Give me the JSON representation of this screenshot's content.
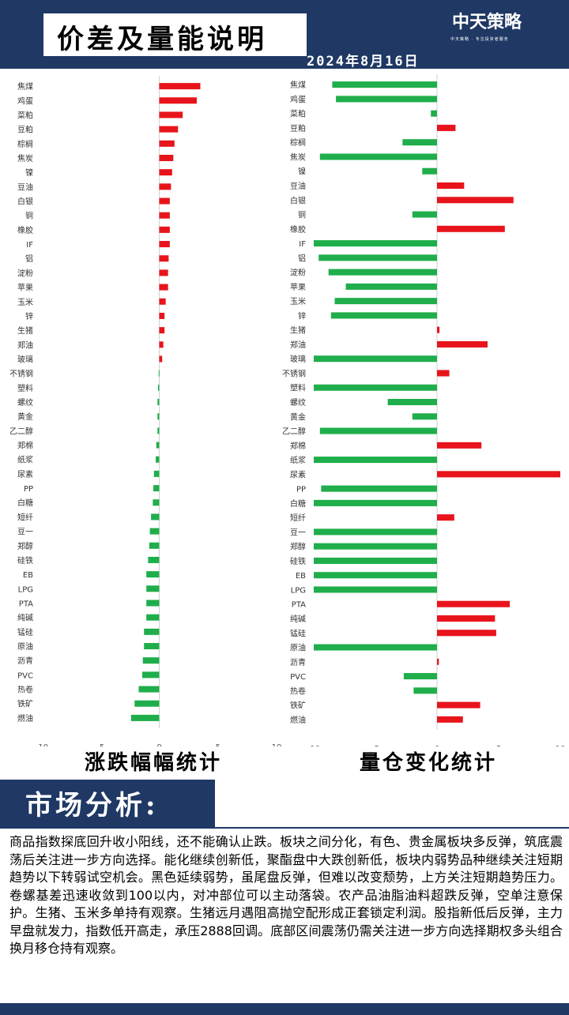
{
  "header": {
    "title": "价差及量能说明",
    "date": "2024年8月16日",
    "logo": "中天策略",
    "logo_sub": "中天策略 · 专注投资者服务"
  },
  "chart_data": [
    {
      "type": "bar",
      "orientation": "horizontal",
      "title": "涨跌幅幅统计",
      "categories": [
        "焦煤",
        "鸡蛋",
        "菜粕",
        "豆粕",
        "棕榈",
        "焦炭",
        "镍",
        "豆油",
        "白银",
        "铜",
        "橡胶",
        "IF",
        "铝",
        "淀粉",
        "苹果",
        "玉米",
        "锌",
        "生猪",
        "郑油",
        "玻璃",
        "不锈钢",
        "塑料",
        "螺纹",
        "黄金",
        "乙二醇",
        "郑棉",
        "纸浆",
        "尿素",
        "PP",
        "白糖",
        "短纤",
        "豆一",
        "郑醇",
        "硅铁",
        "EB",
        "LPG",
        "PTA",
        "纯碱",
        "锰硅",
        "原油",
        "沥青",
        "PVC",
        "热卷",
        "铁矿",
        "燃油"
      ],
      "values": [
        3.5,
        3.2,
        2.0,
        1.6,
        1.3,
        1.2,
        1.1,
        1.0,
        0.9,
        0.9,
        0.9,
        0.9,
        0.8,
        0.75,
        0.75,
        0.55,
        0.45,
        0.45,
        0.35,
        0.25,
        -0.05,
        -0.1,
        -0.15,
        -0.15,
        -0.15,
        -0.25,
        -0.3,
        -0.45,
        -0.5,
        -0.55,
        -0.7,
        -0.8,
        -0.85,
        -0.95,
        -1.1,
        -1.1,
        -1.1,
        -1.1,
        -1.3,
        -1.3,
        -1.4,
        -1.45,
        -1.75,
        -2.1,
        -2.4
      ],
      "xlim": [
        -10,
        10
      ],
      "xticks": [
        "-10",
        "-5",
        "0",
        "5",
        "10"
      ],
      "positive_color": "#e8141c",
      "negative_color": "#1fae4b"
    },
    {
      "type": "bar",
      "orientation": "horizontal",
      "title": "量仓变化统计",
      "categories": [
        "焦煤",
        "鸡蛋",
        "菜粕",
        "豆粕",
        "棕榈",
        "焦炭",
        "镍",
        "豆油",
        "白银",
        "铜",
        "橡胶",
        "IF",
        "铝",
        "淀粉",
        "苹果",
        "玉米",
        "锌",
        "生猪",
        "郑油",
        "玻璃",
        "不锈钢",
        "塑料",
        "螺纹",
        "黄金",
        "乙二醇",
        "郑棉",
        "纸浆",
        "尿素",
        "PP",
        "白糖",
        "短纤",
        "豆一",
        "郑醇",
        "硅铁",
        "EB",
        "LPG",
        "PTA",
        "纯碱",
        "锰硅",
        "原油",
        "沥青",
        "PVC",
        "热卷",
        "铁矿",
        "燃油"
      ],
      "values": [
        -8.5,
        -8.2,
        -0.5,
        1.5,
        -2.8,
        -9.5,
        -1.2,
        2.2,
        6.2,
        -2.0,
        5.5,
        -10,
        -9.6,
        -8.8,
        -7.4,
        -8.3,
        -8.6,
        0.2,
        4.1,
        -10,
        1.0,
        -10,
        -4.0,
        -2.0,
        -9.5,
        3.6,
        -10,
        10,
        -9.4,
        -10,
        1.4,
        -10,
        -10,
        -10,
        -10,
        -10,
        5.9,
        4.7,
        4.8,
        -10,
        0.15,
        -2.7,
        -1.9,
        3.5,
        2.1
      ],
      "xlim": [
        -10,
        10
      ],
      "xticks": [
        "-10",
        "-5",
        "0",
        "5",
        "10"
      ],
      "positive_color": "#e8141c",
      "negative_color": "#1fae4b"
    }
  ],
  "analysis": {
    "title": "市场分析:",
    "text": "商品指数探底回升收小阳线，还不能确认止跌。板块之间分化，有色、贵金属板块多反弹，筑底震荡后关注进一步方向选择。能化继续创新低，聚酯盘中大跌创新低，板块内弱势品种继续关注短期趋势以下转弱试空机会。黑色延续弱势，虽尾盘反弹，但难以改变颓势，上方关注短期趋势压力。卷螺基差迅速收敛到100以内，对冲部位可以主动落袋。农产品油脂油料超跌反弹，空单注意保护。生猪、玉米多单持有观察。生猪远月遇阻高抛空配形成正套锁定利润。股指新低后反弹，主力早盘就发力，指数低开高走，承压2888回调。底部区间震荡仍需关注进一步方向选择期权多头组合换月移仓持有观察。"
  }
}
